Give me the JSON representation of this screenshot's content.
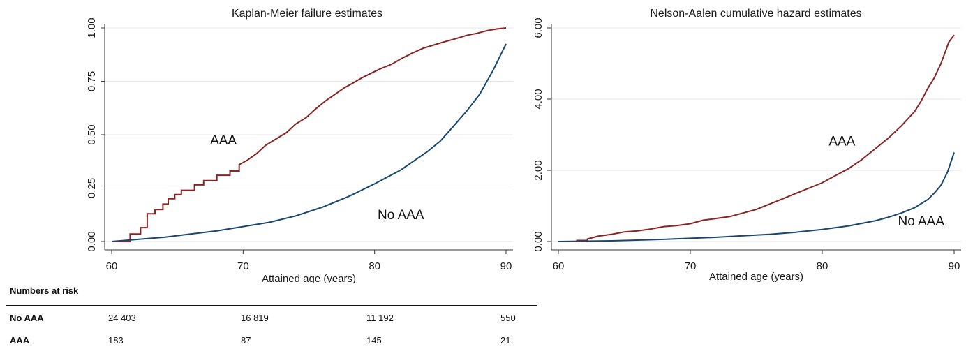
{
  "colors": {
    "aaa": "#8B2323",
    "no_aaa": "#1A476F",
    "grid": "#e6e6e6"
  },
  "chart_data": [
    {
      "type": "line",
      "step": true,
      "title": "Kaplan-Meier failure estimates",
      "xlabel": "Attained age (years)",
      "ylabel": "",
      "xlim": [
        60,
        90
      ],
      "ylim": [
        0,
        1
      ],
      "xticks": [
        60,
        70,
        80,
        90
      ],
      "yticks": [
        0,
        0.25,
        0.5,
        0.75,
        1
      ],
      "ytick_labels": [
        "0.00",
        "0.25",
        "0.50",
        "0.75",
        "1.00"
      ],
      "grid": true,
      "legend": "none",
      "annotations": [
        {
          "text": "AAA",
          "x": 68.5,
          "y": 0.455
        },
        {
          "text": "No AAA",
          "x": 82.0,
          "y": 0.105
        }
      ],
      "series": [
        {
          "color": "#8B2323",
          "x": [
            60,
            61.4,
            61.4,
            62.2,
            62.2,
            62.7,
            62.7,
            63.3,
            63.3,
            63.9,
            63.9,
            64.3,
            64.3,
            64.8,
            64.8,
            65.3,
            65.3,
            66.3,
            66.3,
            67.0,
            67.0,
            68.0,
            68.0,
            69.0,
            69.0,
            69.7,
            69.7,
            70.3,
            71.0,
            71.7,
            72.5,
            73.3,
            74.0,
            74.8,
            75.5,
            76.3,
            77.0,
            77.7,
            78.3,
            79.0,
            79.8,
            80.5,
            81.3,
            82.0,
            82.8,
            83.7,
            84.5,
            85.3,
            86.2,
            87.0,
            87.8,
            88.6,
            89.3,
            90
          ],
          "y": [
            0,
            0,
            0.035,
            0.035,
            0.065,
            0.065,
            0.13,
            0.13,
            0.15,
            0.15,
            0.175,
            0.175,
            0.2,
            0.2,
            0.22,
            0.22,
            0.24,
            0.24,
            0.265,
            0.265,
            0.285,
            0.285,
            0.31,
            0.31,
            0.33,
            0.33,
            0.36,
            0.38,
            0.41,
            0.45,
            0.48,
            0.51,
            0.55,
            0.58,
            0.62,
            0.66,
            0.69,
            0.72,
            0.74,
            0.765,
            0.79,
            0.81,
            0.83,
            0.855,
            0.88,
            0.905,
            0.92,
            0.935,
            0.95,
            0.965,
            0.975,
            0.988,
            0.995,
            1.0
          ]
        },
        {
          "color": "#1A476F",
          "x": [
            60,
            62,
            64,
            66,
            68,
            70,
            72,
            74,
            76,
            78,
            80,
            82,
            84,
            85,
            86,
            87,
            88,
            89,
            90
          ],
          "y": [
            0,
            0.01,
            0.02,
            0.035,
            0.05,
            0.07,
            0.09,
            0.12,
            0.16,
            0.21,
            0.27,
            0.335,
            0.42,
            0.47,
            0.54,
            0.61,
            0.69,
            0.8,
            0.925
          ]
        }
      ]
    },
    {
      "type": "line",
      "step": true,
      "title": "Nelson-Aalen cumulative hazard estimates",
      "xlabel": "Attained age (years)",
      "ylabel": "",
      "xlim": [
        60,
        90
      ],
      "ylim": [
        0,
        6
      ],
      "xticks": [
        60,
        70,
        80,
        90
      ],
      "yticks": [
        0,
        2,
        4,
        6
      ],
      "ytick_labels": [
        "0.00",
        "2.00",
        "4.00",
        "6.00"
      ],
      "grid": true,
      "legend": "none",
      "annotations": [
        {
          "text": "AAA",
          "x": 81.5,
          "y": 2.7
        },
        {
          "text": "No AAA",
          "x": 87.5,
          "y": 0.45
        }
      ],
      "series": [
        {
          "color": "#8B2323",
          "x": [
            60,
            61.4,
            61.4,
            62.2,
            62.2,
            63.0,
            64.0,
            65.0,
            66.0,
            67.0,
            68.0,
            69.0,
            70.0,
            71.0,
            72.0,
            73.0,
            74.0,
            75.0,
            76.0,
            77.0,
            78.0,
            79.0,
            80.0,
            81.0,
            82.0,
            83.0,
            84.0,
            85.0,
            86.0,
            87.0,
            87.5,
            88.0,
            88.5,
            89.0,
            89.3,
            89.6,
            90
          ],
          "y": [
            0,
            0,
            0.03,
            0.03,
            0.07,
            0.15,
            0.2,
            0.27,
            0.3,
            0.35,
            0.42,
            0.45,
            0.5,
            0.6,
            0.65,
            0.7,
            0.8,
            0.9,
            1.05,
            1.2,
            1.35,
            1.5,
            1.65,
            1.85,
            2.05,
            2.3,
            2.6,
            2.9,
            3.25,
            3.65,
            3.95,
            4.3,
            4.6,
            5.0,
            5.3,
            5.6,
            5.8
          ]
        },
        {
          "color": "#1A476F",
          "x": [
            60,
            62,
            64,
            66,
            68,
            70,
            72,
            74,
            76,
            78,
            80,
            82,
            84,
            85,
            86,
            87,
            88,
            88.5,
            89,
            89.5,
            90
          ],
          "y": [
            0,
            0.01,
            0.02,
            0.04,
            0.06,
            0.09,
            0.12,
            0.16,
            0.2,
            0.26,
            0.34,
            0.44,
            0.58,
            0.68,
            0.8,
            0.95,
            1.18,
            1.36,
            1.58,
            1.95,
            2.5
          ]
        }
      ]
    }
  ],
  "risk_table": {
    "title": "Numbers at risk",
    "rows": [
      {
        "label": "No AAA",
        "values": [
          "24 403",
          "16 819",
          "11 192",
          "550"
        ]
      },
      {
        "label": "AAA",
        "values": [
          "183",
          "87",
          "145",
          "21"
        ]
      }
    ]
  }
}
